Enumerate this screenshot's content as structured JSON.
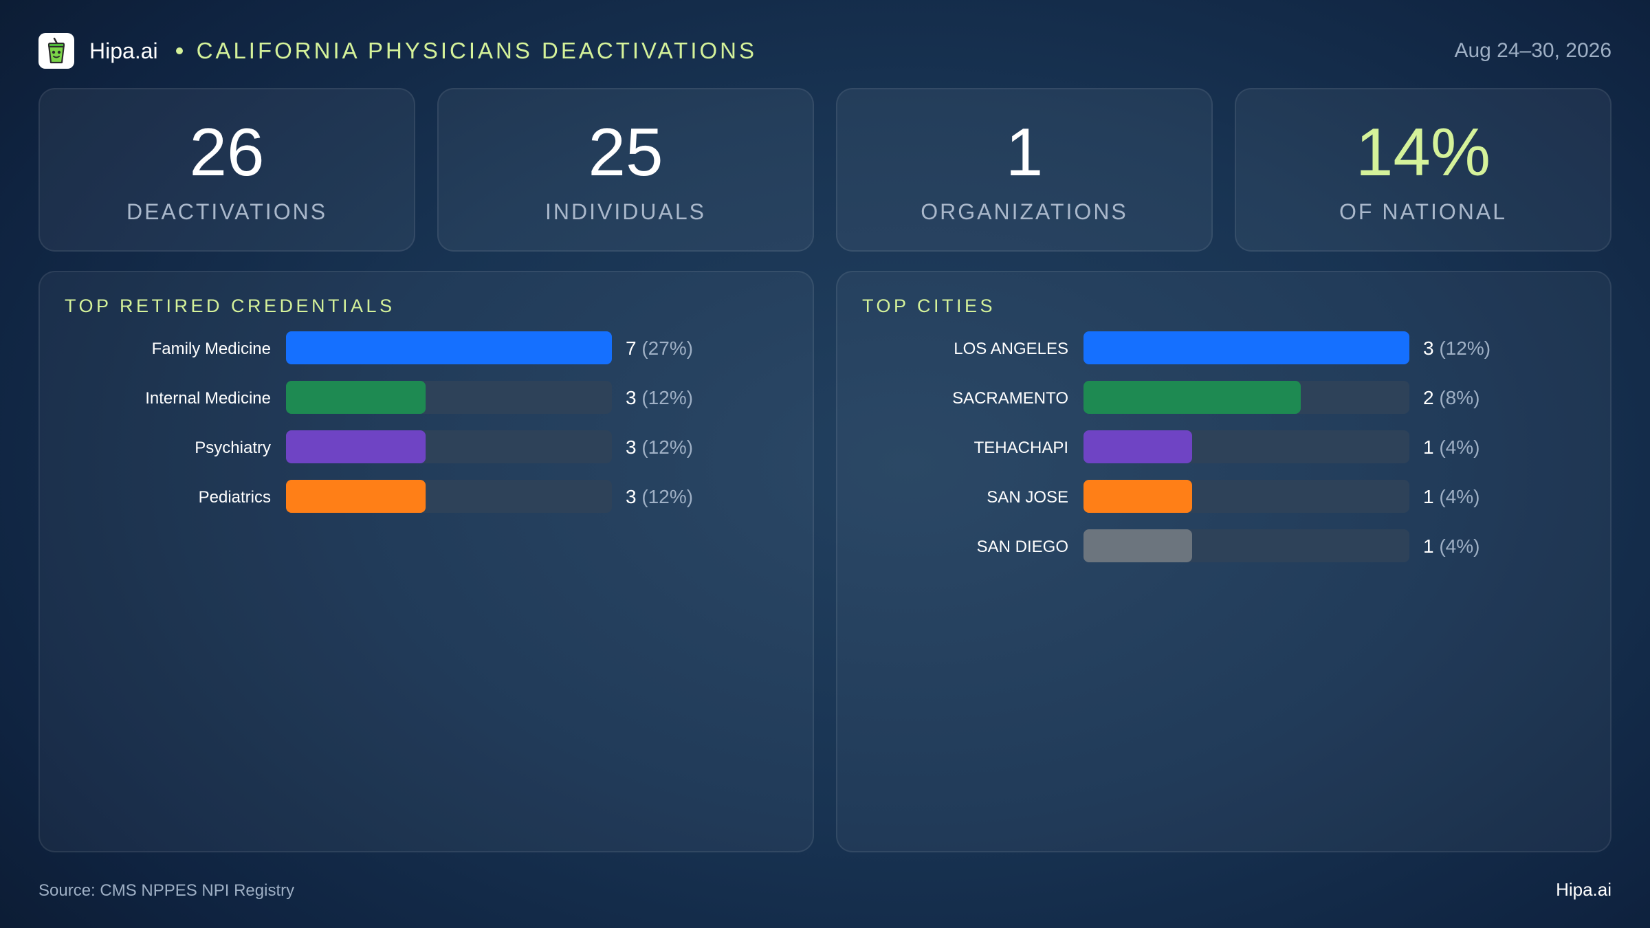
{
  "header": {
    "brand": "Hipa.ai",
    "title": "CALIFORNIA PHYSICIANS DEACTIVATIONS",
    "date": "Aug 24–30, 2026",
    "logo_icon": "green-drink-cup-icon"
  },
  "kpis": [
    {
      "value": "26",
      "label": "DEACTIVATIONS"
    },
    {
      "value": "25",
      "label": "INDIVIDUALS"
    },
    {
      "value": "1",
      "label": "ORGANIZATIONS"
    },
    {
      "value": "14%",
      "label": "OF NATIONAL"
    }
  ],
  "panels": {
    "credentials_title": "TOP RETIRED CREDENTIALS",
    "cities_title": "TOP CITIES"
  },
  "chart_data": [
    {
      "type": "bar",
      "orientation": "horizontal",
      "title": "TOP RETIRED CREDENTIALS",
      "categories": [
        "Family Medicine",
        "Internal Medicine",
        "Psychiatry",
        "Pediatrics"
      ],
      "values": [
        7,
        3,
        3,
        3
      ],
      "percent_labels": [
        "(27%)",
        "(12%)",
        "(12%)",
        "(12%)"
      ],
      "colors": [
        "#1570ff",
        "#1e8a52",
        "#6f44c4",
        "#ff7f17"
      ],
      "xlim": [
        0,
        7
      ]
    },
    {
      "type": "bar",
      "orientation": "horizontal",
      "title": "TOP CITIES",
      "categories": [
        "LOS ANGELES",
        "SACRAMENTO",
        "TEHACHAPI",
        "SAN JOSE",
        "SAN DIEGO"
      ],
      "values": [
        3,
        2,
        1,
        1,
        1
      ],
      "percent_labels": [
        "(12%)",
        "(8%)",
        "(4%)",
        "(4%)",
        "(4%)"
      ],
      "colors": [
        "#1570ff",
        "#1e8a52",
        "#6f44c4",
        "#ff7f17",
        "#6c757e"
      ],
      "xlim": [
        0,
        3
      ]
    }
  ],
  "footer": {
    "source": "Source: CMS NPPES NPI Registry",
    "brand": "Hipa.ai"
  },
  "colors": {
    "accent": "#d5f29a",
    "track": "#2e4259",
    "muted_text": "#9fb0c5"
  }
}
